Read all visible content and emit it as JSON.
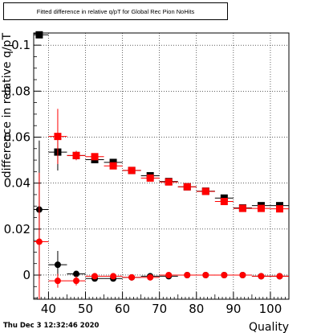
{
  "title": "Fitted difference in relative q/pT for Global Rec Pion NoHits",
  "timestamp": "Thu Dec  3 12:32:46 2020",
  "chart_data": {
    "type": "scatter",
    "title": "Fitted difference in relative q/pT for Global Rec Pion NoHits",
    "xlabel": "Quality",
    "ylabel": "difference in relative q/pT",
    "xlim": [
      36,
      105
    ],
    "ylim": [
      -0.0105,
      0.1053
    ],
    "x_ticks": [
      40,
      50,
      60,
      70,
      80,
      90,
      100
    ],
    "y_ticks": [
      0,
      0.02,
      0.04,
      0.06,
      0.08,
      0.1
    ],
    "y_tick_labels": [
      "0",
      "0.02",
      "0.04",
      "0.06",
      "0.08",
      "0.1"
    ],
    "grid": true,
    "x_error": 2.5,
    "series": [
      {
        "color": "#000000",
        "marker": "square",
        "x": [
          37.5,
          42.5,
          47.5,
          52.5,
          57.5,
          62.5,
          67.5,
          72.5,
          77.5,
          82.5,
          87.5,
          92.5,
          97.5,
          102.5
        ],
        "y": [
          0.1045,
          0.0535,
          0.052,
          0.0502,
          0.049,
          0.0455,
          0.0432,
          0.0407,
          0.0384,
          0.0365,
          0.0335,
          0.0292,
          0.0302,
          0.0302
        ],
        "yerr": [
          0.0,
          0.008,
          0.002,
          0.0015,
          0.0015,
          0.001,
          0.001,
          0.001,
          0.001,
          0.001,
          0.001,
          0.001,
          0.001,
          0.001
        ]
      },
      {
        "color": "#ff0000",
        "marker": "square",
        "x": [
          42.5,
          47.5,
          52.5,
          57.5,
          62.5,
          67.5,
          72.5,
          77.5,
          82.5,
          87.5,
          92.5,
          97.5,
          102.5
        ],
        "y": [
          0.0603,
          0.052,
          0.0515,
          0.0475,
          0.0455,
          0.0422,
          0.0405,
          0.0384,
          0.0364,
          0.032,
          0.029,
          0.029,
          0.0288
        ],
        "yerr": [
          0.012,
          0.002,
          0.0015,
          0.0015,
          0.001,
          0.001,
          0.001,
          0.001,
          0.001,
          0.001,
          0.001,
          0.001,
          0.001
        ]
      },
      {
        "color": "#000000",
        "marker": "circle",
        "x": [
          37.5,
          42.5,
          47.5,
          52.5,
          57.5,
          62.5,
          67.5,
          72.5,
          77.5,
          82.5,
          87.5,
          92.5,
          97.5,
          102.5
        ],
        "y": [
          0.0285,
          0.0045,
          0.0005,
          -0.0015,
          -0.0015,
          -0.001,
          -0.0005,
          -0.0005,
          0.0,
          0.0,
          0.0,
          0.0,
          -0.0005,
          -0.0005
        ],
        "yerr": [
          0.03,
          0.006,
          0.001,
          0.001,
          0.0008,
          0.0008,
          0.0008,
          0.0008,
          0.0008,
          0.0008,
          0.0008,
          0.0008,
          0.0008,
          0.0008
        ]
      },
      {
        "color": "#ff0000",
        "marker": "circle",
        "x": [
          37.5,
          42.5,
          47.5,
          52.5,
          57.5,
          62.5,
          67.5,
          72.5,
          77.5,
          82.5,
          87.5,
          92.5,
          97.5,
          102.5
        ],
        "y": [
          0.0145,
          -0.0025,
          -0.0025,
          -0.0005,
          -0.0005,
          -0.001,
          -0.001,
          0.0,
          0.0,
          0.0,
          0.0,
          0.0,
          -0.0005,
          -0.0005
        ],
        "yerr": [
          0.03,
          0.003,
          0.002,
          0.001,
          0.0008,
          0.0008,
          0.0008,
          0.0008,
          0.0008,
          0.0008,
          0.0008,
          0.0008,
          0.0008,
          0.0008
        ]
      }
    ]
  }
}
